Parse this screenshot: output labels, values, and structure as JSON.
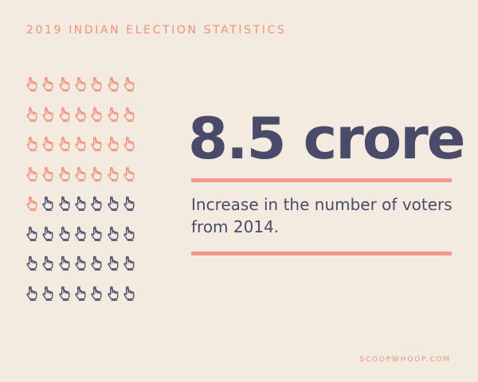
{
  "header": {
    "eyebrow": "2019 INDIAN ELECTION STATISTICS"
  },
  "stat": {
    "value": "8.5 crore",
    "description": "Increase in the number of voters from 2014."
  },
  "icon_grid": {
    "icon": "pointing-hand-icon",
    "rows": 8,
    "columns": 7,
    "highlighted_count": 29,
    "total_count": 56,
    "highlight_color": "#f2907c",
    "base_color": "#4a4a6b"
  },
  "footer": {
    "source": "SCOOPWHOOP.COM"
  }
}
